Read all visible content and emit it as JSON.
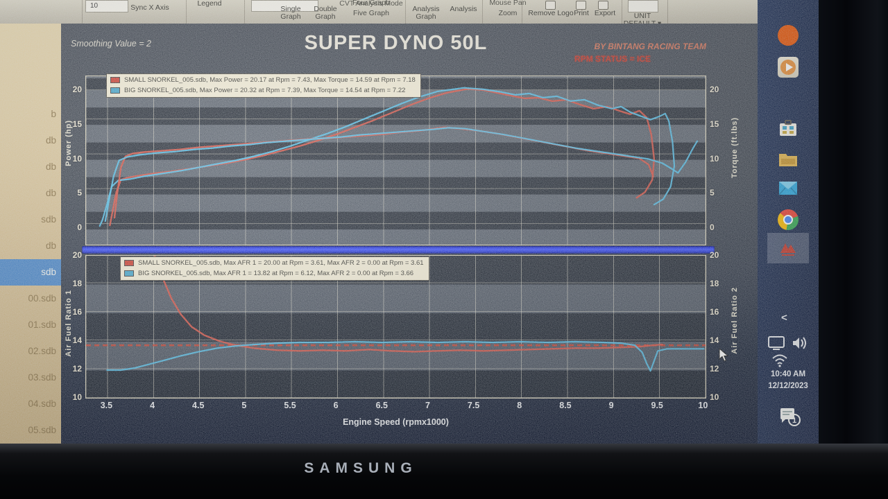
{
  "toolbar": {
    "box10": "10",
    "sync": "Sync X Axis",
    "legend": "Legend",
    "cvt": "CVT Analysis Mode",
    "single": "Single Graph",
    "double": "Double Graph",
    "four": "Four Graph",
    "five": "Five Graph",
    "analysis_graph": "Analysis Graph",
    "analysis": "Analysis",
    "mouse_pan": "Mouse Pan",
    "zoom": "Zoom",
    "remove_logo": "Remove Logo",
    "print": "Print",
    "export": "Export",
    "unit": "UNIT DEFAULT ▾"
  },
  "sidebar": {
    "files": [
      {
        "label": "b"
      },
      {
        "label": "db"
      },
      {
        "label": "db"
      },
      {
        "label": "db"
      },
      {
        "label": "sdb"
      },
      {
        "label": "db"
      },
      {
        "label": "sdb",
        "selected": true
      },
      {
        "label": "00.sdb"
      },
      {
        "label": "01.sdb"
      },
      {
        "label": "02.sdb"
      },
      {
        "label": "03.sdb"
      },
      {
        "label": "04.sdb"
      },
      {
        "label": "05.sdb"
      }
    ]
  },
  "header": {
    "smoothing": "Smoothing Value = 2",
    "title": "SUPER DYNO 50L",
    "byline": "BY BINTANG RACING TEAM",
    "rpm_status": "RPM STATUS = ICE"
  },
  "taskbar": {
    "time": "10:40 AM",
    "date": "12/12/2023",
    "badge": "1"
  },
  "brand": "SAMSUNG",
  "chart_data": [
    {
      "type": "line",
      "title": "SUPER DYNO 50L",
      "xlim": [
        3.27,
        10.02
      ],
      "ylim": [
        -2.4,
        22
      ],
      "x_ticks": [
        3.5,
        4,
        4.5,
        5,
        5.5,
        6,
        6.5,
        7,
        7.5,
        8,
        8.5,
        9,
        9.5,
        10
      ],
      "show_x_labels": false,
      "y_ticks": [
        0,
        5,
        10,
        15,
        20
      ],
      "ylabel_left": "Power (hp)",
      "ylabel_right": "Torque (ft.lbs)",
      "legend": [
        {
          "color": "#cc4437",
          "label": "SMALL SNORKEL_005.sdb, Max Power = 20.17 at Rpm = 7.43, Max Torque = 14.59 at Rpm = 7.18"
        },
        {
          "color": "#4aa8cc",
          "label": "BIG SNORKEL_005.sdb, Max Power = 20.32 at Rpm = 7.39, Max Torque = 14.54 at Rpm = 7.22"
        }
      ],
      "series": [
        {
          "name": "small-snorkel-power",
          "color": "#d9584a",
          "width": 2.4,
          "points": [
            [
              3.53,
              0.4
            ],
            [
              3.56,
              2.5
            ],
            [
              3.6,
              5.2
            ],
            [
              3.65,
              7.0
            ],
            [
              3.72,
              7.3
            ],
            [
              3.85,
              7.6
            ],
            [
              4.0,
              7.9
            ],
            [
              4.2,
              8.2
            ],
            [
              4.4,
              8.6
            ],
            [
              4.6,
              9.0
            ],
            [
              4.8,
              9.4
            ],
            [
              5.0,
              9.9
            ],
            [
              5.2,
              10.5
            ],
            [
              5.4,
              11.2
            ],
            [
              5.6,
              11.9
            ],
            [
              5.8,
              12.7
            ],
            [
              6.0,
              13.6
            ],
            [
              6.2,
              14.6
            ],
            [
              6.4,
              15.6
            ],
            [
              6.6,
              16.7
            ],
            [
              6.8,
              17.8
            ],
            [
              7.0,
              18.8
            ],
            [
              7.2,
              19.6
            ],
            [
              7.43,
              20.17
            ],
            [
              7.6,
              20.0
            ],
            [
              7.75,
              19.6
            ],
            [
              7.9,
              19.2
            ],
            [
              8.05,
              18.8
            ],
            [
              8.2,
              18.9
            ],
            [
              8.35,
              18.4
            ],
            [
              8.5,
              18.6
            ],
            [
              8.65,
              17.9
            ],
            [
              8.8,
              17.3
            ],
            [
              8.95,
              17.6
            ],
            [
              9.1,
              16.9
            ],
            [
              9.2,
              16.5
            ],
            [
              9.3,
              17.0
            ],
            [
              9.38,
              16.0
            ],
            [
              9.43,
              13.5
            ],
            [
              9.46,
              10.0
            ],
            [
              9.44,
              7.0
            ],
            [
              9.36,
              5.2
            ],
            [
              9.27,
              4.4
            ]
          ]
        },
        {
          "name": "big-snorkel-power",
          "color": "#58c0e8",
          "width": 2.2,
          "points": [
            [
              3.42,
              0.3
            ],
            [
              3.45,
              1.2
            ],
            [
              3.5,
              3.5
            ],
            [
              3.55,
              6.0
            ],
            [
              3.62,
              6.9
            ],
            [
              3.75,
              7.1
            ],
            [
              3.9,
              7.5
            ],
            [
              4.1,
              7.9
            ],
            [
              4.3,
              8.3
            ],
            [
              4.5,
              8.8
            ],
            [
              4.7,
              9.3
            ],
            [
              4.9,
              9.8
            ],
            [
              5.1,
              10.4
            ],
            [
              5.3,
              11.1
            ],
            [
              5.5,
              11.9
            ],
            [
              5.7,
              12.8
            ],
            [
              5.9,
              13.7
            ],
            [
              6.1,
              14.7
            ],
            [
              6.3,
              15.8
            ],
            [
              6.5,
              16.9
            ],
            [
              6.7,
              18.0
            ],
            [
              6.9,
              19.0
            ],
            [
              7.1,
              19.8
            ],
            [
              7.39,
              20.32
            ],
            [
              7.6,
              20.1
            ],
            [
              7.8,
              19.7
            ],
            [
              7.95,
              19.3
            ],
            [
              8.1,
              19.5
            ],
            [
              8.25,
              18.9
            ],
            [
              8.4,
              19.1
            ],
            [
              8.55,
              18.4
            ],
            [
              8.7,
              18.6
            ],
            [
              8.85,
              17.8
            ],
            [
              9.0,
              17.3
            ],
            [
              9.1,
              17.6
            ],
            [
              9.2,
              16.8
            ],
            [
              9.3,
              16.3
            ],
            [
              9.42,
              15.7
            ],
            [
              9.52,
              16.2
            ],
            [
              9.58,
              16.6
            ],
            [
              9.62,
              15.5
            ],
            [
              9.66,
              12.5
            ],
            [
              9.68,
              9.0
            ],
            [
              9.64,
              6.0
            ],
            [
              9.56,
              4.2
            ],
            [
              9.46,
              3.4
            ]
          ]
        },
        {
          "name": "small-snorkel-torque",
          "color": "#d9584a",
          "width": 2.4,
          "points": [
            [
              3.58,
              1.5
            ],
            [
              3.61,
              5.0
            ],
            [
              3.65,
              8.8
            ],
            [
              3.7,
              10.4
            ],
            [
              3.78,
              10.8
            ],
            [
              3.9,
              11.0
            ],
            [
              4.1,
              11.2
            ],
            [
              4.3,
              11.4
            ],
            [
              4.5,
              11.7
            ],
            [
              4.7,
              11.9
            ],
            [
              4.9,
              12.1
            ],
            [
              5.1,
              12.3
            ],
            [
              5.3,
              12.5
            ],
            [
              5.5,
              12.7
            ],
            [
              5.7,
              12.9
            ],
            [
              5.9,
              13.0
            ],
            [
              6.1,
              13.2
            ],
            [
              6.3,
              13.4
            ],
            [
              6.5,
              13.6
            ],
            [
              6.7,
              13.9
            ],
            [
              6.9,
              14.1
            ],
            [
              7.18,
              14.59
            ],
            [
              7.35,
              14.4
            ],
            [
              7.55,
              14.1
            ],
            [
              7.75,
              13.7
            ],
            [
              7.95,
              13.2
            ],
            [
              8.15,
              12.7
            ],
            [
              8.35,
              12.2
            ],
            [
              8.55,
              11.7
            ],
            [
              8.75,
              11.2
            ],
            [
              8.95,
              10.8
            ],
            [
              9.15,
              10.4
            ],
            [
              9.3,
              10.1
            ],
            [
              9.4,
              9.2
            ],
            [
              9.45,
              7.5
            ]
          ]
        },
        {
          "name": "big-snorkel-torque",
          "color": "#58c0e8",
          "width": 2.2,
          "points": [
            [
              3.48,
              1.0
            ],
            [
              3.52,
              4.0
            ],
            [
              3.57,
              7.5
            ],
            [
              3.63,
              9.8
            ],
            [
              3.72,
              10.3
            ],
            [
              3.85,
              10.6
            ],
            [
              4.05,
              10.9
            ],
            [
              4.25,
              11.1
            ],
            [
              4.45,
              11.4
            ],
            [
              4.65,
              11.6
            ],
            [
              4.85,
              11.9
            ],
            [
              5.05,
              12.1
            ],
            [
              5.25,
              12.4
            ],
            [
              5.45,
              12.6
            ],
            [
              5.65,
              12.8
            ],
            [
              5.85,
              13.0
            ],
            [
              6.05,
              13.2
            ],
            [
              6.25,
              13.5
            ],
            [
              6.45,
              13.7
            ],
            [
              6.65,
              13.9
            ],
            [
              6.85,
              14.1
            ],
            [
              7.05,
              14.3
            ],
            [
              7.22,
              14.54
            ],
            [
              7.4,
              14.4
            ],
            [
              7.6,
              14.0
            ],
            [
              7.8,
              13.6
            ],
            [
              8.0,
              13.1
            ],
            [
              8.2,
              12.6
            ],
            [
              8.4,
              12.1
            ],
            [
              8.6,
              11.6
            ],
            [
              8.8,
              11.2
            ],
            [
              9.0,
              10.8
            ],
            [
              9.2,
              10.4
            ],
            [
              9.4,
              10.0
            ],
            [
              9.55,
              9.4
            ],
            [
              9.65,
              8.6
            ],
            [
              9.72,
              8.0
            ],
            [
              9.8,
              9.5
            ],
            [
              9.88,
              11.5
            ],
            [
              9.93,
              12.6
            ]
          ]
        }
      ]
    },
    {
      "type": "line",
      "xlim": [
        3.27,
        10.02
      ],
      "ylim": [
        10,
        20
      ],
      "x_ticks": [
        3.5,
        4,
        4.5,
        5,
        5.5,
        6,
        6.5,
        7,
        7.5,
        8,
        8.5,
        9,
        9.5,
        10
      ],
      "show_x_labels": true,
      "y_ticks": [
        10,
        12,
        14,
        16,
        18,
        20
      ],
      "ylabel_left": "Air Fuel Ratio 1",
      "ylabel_right": "Air Fuel Ratio 2",
      "xlabel": "Engine Speed (rpmx1000)",
      "ref_line": {
        "value": 13.7,
        "color": "#cc4433"
      },
      "legend": [
        {
          "color": "#cc4437",
          "label": "SMALL SNORKEL_005.sdb, Max AFR 1 = 20.00 at Rpm = 3.61, Max AFR 2 = 0.00 at Rpm = 3.61"
        },
        {
          "color": "#4aa8cc",
          "label": "BIG SNORKEL_005.sdb, Max AFR 1 = 13.82 at Rpm = 6.12, Max AFR 2 = 0.00 at Rpm = 3.66"
        }
      ],
      "series": [
        {
          "name": "small-snorkel-afr",
          "color": "#d9584a",
          "width": 2.4,
          "points": [
            [
              4.02,
              20.0
            ],
            [
              4.06,
              19.2
            ],
            [
              4.12,
              18.2
            ],
            [
              4.2,
              17.0
            ],
            [
              4.3,
              15.9
            ],
            [
              4.42,
              15.0
            ],
            [
              4.56,
              14.4
            ],
            [
              4.72,
              14.0
            ],
            [
              4.9,
              13.7
            ],
            [
              5.1,
              13.5
            ],
            [
              5.35,
              13.35
            ],
            [
              5.6,
              13.3
            ],
            [
              5.85,
              13.35
            ],
            [
              6.1,
              13.3
            ],
            [
              6.35,
              13.4
            ],
            [
              6.6,
              13.3
            ],
            [
              6.85,
              13.25
            ],
            [
              7.1,
              13.3
            ],
            [
              7.35,
              13.35
            ],
            [
              7.6,
              13.3
            ],
            [
              7.85,
              13.35
            ],
            [
              8.1,
              13.4
            ],
            [
              8.35,
              13.45
            ],
            [
              8.6,
              13.5
            ],
            [
              8.85,
              13.5
            ],
            [
              9.1,
              13.55
            ],
            [
              9.3,
              13.6
            ],
            [
              9.45,
              13.7
            ],
            [
              9.55,
              13.75
            ]
          ]
        },
        {
          "name": "big-snorkel-afr",
          "color": "#58c0e8",
          "width": 2.2,
          "points": [
            [
              3.5,
              11.95
            ],
            [
              3.65,
              11.95
            ],
            [
              3.8,
              12.1
            ],
            [
              3.95,
              12.35
            ],
            [
              4.1,
              12.6
            ],
            [
              4.3,
              12.95
            ],
            [
              4.5,
              13.25
            ],
            [
              4.7,
              13.5
            ],
            [
              4.9,
              13.65
            ],
            [
              5.1,
              13.75
            ],
            [
              5.35,
              13.85
            ],
            [
              5.6,
              13.9
            ],
            [
              5.9,
              13.9
            ],
            [
              6.2,
              13.95
            ],
            [
              6.5,
              13.9
            ],
            [
              6.8,
              13.95
            ],
            [
              7.1,
              13.9
            ],
            [
              7.4,
              13.95
            ],
            [
              7.7,
              13.9
            ],
            [
              8.0,
              13.95
            ],
            [
              8.3,
              13.9
            ],
            [
              8.6,
              13.95
            ],
            [
              8.9,
              13.9
            ],
            [
              9.1,
              13.85
            ],
            [
              9.25,
              13.7
            ],
            [
              9.33,
              13.2
            ],
            [
              9.38,
              12.4
            ],
            [
              9.42,
              11.9
            ],
            [
              9.5,
              13.3
            ],
            [
              9.6,
              13.45
            ],
            [
              9.8,
              13.45
            ],
            [
              10.0,
              13.45
            ]
          ]
        }
      ]
    }
  ]
}
